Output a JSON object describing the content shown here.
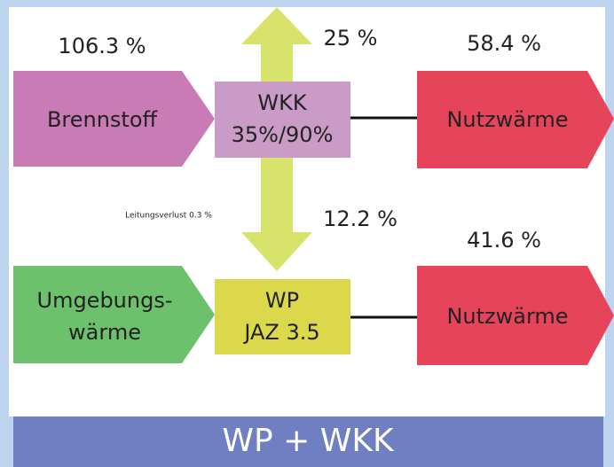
{
  "percentages": {
    "brennstoff": "106.3 %",
    "top": "25 %",
    "nutz_top": "58.4 %",
    "middle": "12.2 %",
    "nutz_bottom": "41.6 %"
  },
  "loss_note": "Leitungsverlust 0.3 %",
  "nodes": [
    {
      "label": "Brennstoff"
    },
    {
      "label_lines": [
        "WKK",
        "35%/90%"
      ]
    },
    {
      "label": "Nutzwärme"
    },
    {
      "label_lines": [
        "Umgebungs-",
        "wärme"
      ]
    },
    {
      "label_lines": [
        "WP",
        "JAZ 3.5"
      ]
    },
    {
      "label": "Nutzwärme"
    }
  ],
  "banner": "WP + WKK"
}
